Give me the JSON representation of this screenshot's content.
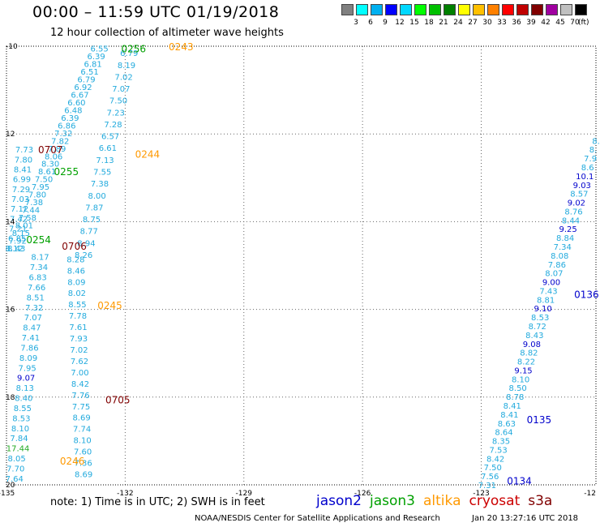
{
  "title": "00:00 – 11:59 UTC 01/19/2018",
  "subtitle": "12 hour collection of altimeter wave heights",
  "colorbar": {
    "unit_label": "(ft)",
    "colors": [
      "#808080",
      "#00ffff",
      "#00b0f0",
      "#0000ff",
      "#00d8ff",
      "#00ff00",
      "#00c000",
      "#008000",
      "#ffff00",
      "#ffc000",
      "#ff8000",
      "#ff0000",
      "#c00000",
      "#800000",
      "#a000a0",
      "#c0c0c0",
      "#000000"
    ],
    "labels": [
      "3",
      "6",
      "9",
      "12",
      "15",
      "18",
      "21",
      "24",
      "27",
      "30",
      "33",
      "36",
      "39",
      "42",
      "45",
      "70"
    ]
  },
  "axes": {
    "x_ticks": [
      "-135",
      "-132",
      "-129",
      "-126",
      "-123",
      "-12"
    ],
    "y_ticks": [
      "-10",
      "12",
      "14",
      "16",
      "18",
      "20"
    ]
  },
  "note": "note:  1) Time is in UTC;  2) SWH is in feet",
  "satellites": [
    {
      "name": "jason2",
      "color": "#0000cc"
    },
    {
      "name": "jason3",
      "color": "#00a000"
    },
    {
      "name": "altika",
      "color": "#ff9900"
    },
    {
      "name": "cryosat",
      "color": "#cc0000"
    },
    {
      "name": "s3a",
      "color": "#800000"
    }
  ],
  "footer_left": "NOAA/NESDIS Center for Satellite Applications and Research",
  "footer_right": "Jan 20 13:27:16 UTC 2018",
  "time_labels": [
    {
      "text": "0243",
      "sat": "altika",
      "lon": -130.9,
      "lat": -10.0
    },
    {
      "text": "0256",
      "sat": "jason3",
      "lon": -132.1,
      "lat": -10.05
    },
    {
      "text": "0707",
      "sat": "s3a",
      "lon": -134.2,
      "lat": -12.35
    },
    {
      "text": "0244",
      "sat": "altika",
      "lon": -131.75,
      "lat": -12.45
    },
    {
      "text": "0255",
      "sat": "jason3",
      "lon": -133.8,
      "lat": -12.85
    },
    {
      "text": "0254",
      "sat": "jason3",
      "lon": -134.5,
      "lat": -14.4
    },
    {
      "text": "0706",
      "sat": "s3a",
      "lon": -133.6,
      "lat": -14.55
    },
    {
      "text": "0245",
      "sat": "altika",
      "lon": -132.7,
      "lat": -15.9
    },
    {
      "text": "0705",
      "sat": "s3a",
      "lon": -132.5,
      "lat": -18.05
    },
    {
      "text": "0246",
      "sat": "altika",
      "lon": -133.65,
      "lat": -19.45
    },
    {
      "text": "0136",
      "sat": "jason2",
      "lon": -120.65,
      "lat": -15.65
    },
    {
      "text": "0135",
      "sat": "jason2",
      "lon": -121.85,
      "lat": -18.5
    },
    {
      "text": "0134",
      "sat": "jason2",
      "lon": -122.35,
      "lat": -19.9
    }
  ],
  "tracks": [
    {
      "name": "jason3-track-a",
      "sat": "jason3",
      "color": "#22aadd",
      "start": {
        "lon": -132.65,
        "lat": -10.05
      },
      "end": {
        "lon": -134.8,
        "lat": -14.6
      },
      "values": [
        "6.55",
        "6.39",
        "6.81",
        "6.51",
        "6.79",
        "6.92",
        "6.67",
        "6.60",
        "6.48",
        "6.39",
        "6.86",
        "7.32",
        "7.82",
        "7.89",
        "8.06",
        "8.30",
        "8.61",
        "7.50",
        "7.95",
        "7.80",
        "7.38",
        "7.44",
        "7.58",
        "8.01",
        "8.15",
        "7.92",
        "8.12"
      ]
    },
    {
      "name": "altika-track-a",
      "sat": "altika",
      "color": "#22aadd",
      "start": {
        "lon": -131.9,
        "lat": -10.15
      },
      "end": {
        "lon": -133.05,
        "lat": -14.75
      },
      "values": [
        "6.79",
        "8.19",
        "7.02",
        "7.07",
        "7.50",
        "7.23",
        "7.28",
        "6.57",
        "6.61",
        "7.13",
        "7.55",
        "7.38",
        "8.00",
        "7.87",
        "8.75",
        "8.77",
        "8.94",
        "8.26"
      ]
    },
    {
      "name": "s3a-track-a",
      "sat": "s3a",
      "color": "#22aadd",
      "start": {
        "lon": -134.55,
        "lat": -12.35
      },
      "end": {
        "lon": -134.75,
        "lat": -14.6
      },
      "values": [
        "7.73",
        "7.80",
        "8.41",
        "6.99",
        "7.29",
        "7.03",
        "7.12",
        "7.42",
        "7.21",
        "6.85",
        "8.43"
      ]
    },
    {
      "name": "s3a-track-b",
      "sat": "s3a",
      "color": "#22aadd",
      "start": {
        "lon": -134.15,
        "lat": -14.8
      },
      "end": {
        "lon": -134.8,
        "lat": -19.85
      },
      "values": [
        "8.17",
        "7.34",
        "6.83",
        "7.66",
        "8.51",
        "7.32",
        "7.07",
        "8.47",
        "7.41",
        "7.86",
        "8.09",
        "7.95",
        "9.07",
        "8.13",
        "8.40",
        "8.55",
        "8.53",
        "8.10",
        "7.84",
        "17.44",
        "8.05",
        "7.70",
        "7.64"
      ]
    },
    {
      "name": "altika-track-b",
      "sat": "altika",
      "color": "#22aadd",
      "start": {
        "lon": -133.25,
        "lat": -14.85
      },
      "end": {
        "lon": -133.05,
        "lat": -19.75
      },
      "values": [
        "8.28",
        "8.46",
        "8.09",
        "8.02",
        "8.55",
        "7.78",
        "7.61",
        "7.93",
        "7.02",
        "7.62",
        "7.00",
        "8.42",
        "7.76",
        "7.75",
        "8.69",
        "7.74",
        "8.10",
        "7.60",
        "7.36",
        "8.69"
      ]
    },
    {
      "name": "jason2-track",
      "sat": "jason2",
      "color": "#22aadd",
      "start": {
        "lon": -120.1,
        "lat": -12.15
      },
      "end": {
        "lon": -122.85,
        "lat": -20.0
      },
      "values": [
        "8.",
        "8.",
        "7.9",
        "8.6",
        "10.1",
        "9.03",
        "8.57",
        "9.02",
        "8.76",
        "8.44",
        "9.25",
        "8.84",
        "7.34",
        "8.08",
        "7.86",
        "8.07",
        "9.00",
        "7.43",
        "8.81",
        "9.10",
        "8.53",
        "8.72",
        "8.43",
        "9.08",
        "8.82",
        "8.22",
        "9.15",
        "8.10",
        "8.50",
        "8.78",
        "8.41",
        "8.41",
        "8.63",
        "8.64",
        "8.35",
        "7.53",
        "8.42",
        "7.50",
        "7.56",
        "7.31"
      ]
    }
  ]
}
